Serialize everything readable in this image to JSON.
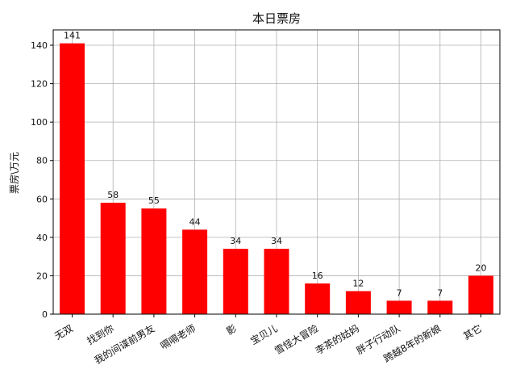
{
  "chart_data": {
    "type": "bar",
    "title": "本日票房",
    "xlabel": "",
    "ylabel": "票房\\万元",
    "categories": [
      "无双",
      "找到你",
      "我的间谍前男友",
      "嗝嗝老师",
      "影",
      "宝贝儿",
      "雪怪大冒险",
      "李茶的姑妈",
      "胖子行动队",
      "跨越8年的新娘",
      "其它"
    ],
    "values": [
      141,
      58,
      55,
      44,
      34,
      34,
      16,
      12,
      7,
      7,
      20
    ],
    "ylim": [
      0,
      148
    ],
    "yticks": [
      0,
      20,
      40,
      60,
      80,
      100,
      120,
      140
    ],
    "grid": true,
    "bar_color": "#ff0000"
  }
}
